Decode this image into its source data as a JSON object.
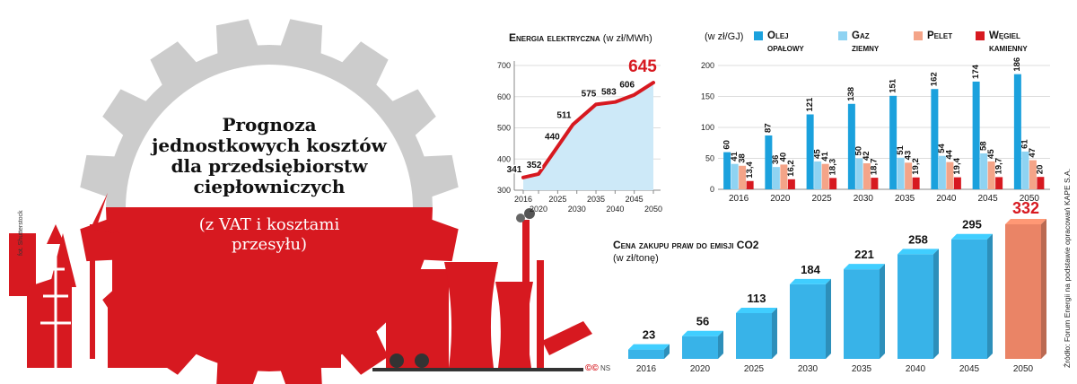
{
  "infographic": {
    "title_lines": [
      "Prognoza",
      "jednostkowych kosztów",
      "dla przedsiębiorstw",
      "ciepłowniczych"
    ],
    "subtitle_lines": [
      "(z VAT i kosztami",
      "przesyłu)"
    ],
    "photo_credit": "fot. Shutterstock",
    "source": "Źródło: Forum Energii na podstawie opracowań KAPE S.A.",
    "badge_text": "NS",
    "colors": {
      "red": "#d71920",
      "grey": "#cccccc"
    }
  },
  "chart_data": [
    {
      "type": "line",
      "title": "Energia elektryczna",
      "unit": "(w zł/MWh)",
      "x": [
        2016,
        2020,
        2025,
        2030,
        2035,
        2040,
        2045,
        2050
      ],
      "x_ticks_top": [
        "2016",
        "2025",
        "2035",
        "2045"
      ],
      "x_ticks_bottom": [
        "2020",
        "2030",
        "2040",
        "2050"
      ],
      "points_x": [
        2016,
        2020,
        2025,
        2029,
        2035,
        2040,
        2045,
        2050
      ],
      "values": [
        341,
        352,
        440,
        511,
        575,
        583,
        606,
        645
      ],
      "value_labels": [
        "341",
        "352",
        "440",
        "511",
        "575",
        "583",
        "606",
        "645"
      ],
      "ylim": [
        300,
        700
      ],
      "y_ticks": [
        "300",
        "400",
        "500",
        "600",
        "700"
      ],
      "line_color": "#d71920",
      "area_color": "#cde9f8",
      "grid": true
    },
    {
      "type": "bar",
      "unit": "(w zł/GJ)",
      "categories": [
        "2016",
        "2020",
        "2025",
        "2030",
        "2035",
        "2040",
        "2045",
        "2050"
      ],
      "series": [
        {
          "name": "Olej opałowy",
          "name_lines": [
            "Olej",
            "opałowy"
          ],
          "color": "#1ba1dd",
          "values": [
            60,
            87,
            121,
            138,
            151,
            162,
            174,
            186
          ],
          "labels": [
            "60",
            "87",
            "121",
            "138",
            "151",
            "162",
            "174",
            "186"
          ]
        },
        {
          "name": "Gaz ziemny",
          "name_lines": [
            "Gaz",
            "ziemny"
          ],
          "color": "#8fd3f2",
          "values": [
            41,
            36,
            45,
            50,
            51,
            54,
            58,
            61
          ],
          "labels": [
            "41",
            "36",
            "45",
            "50",
            "51",
            "54",
            "58",
            "61"
          ]
        },
        {
          "name": "Pelet",
          "name_lines": [
            "Pelet"
          ],
          "color": "#f4a488",
          "values": [
            38,
            40,
            41,
            42,
            43,
            44,
            45,
            47
          ],
          "labels": [
            "38",
            "40",
            "41",
            "42",
            "43",
            "44",
            "45",
            "47"
          ]
        },
        {
          "name": "Węgiel kamienny",
          "name_lines": [
            "Węgiel",
            "kamienny"
          ],
          "color": "#d71920",
          "values": [
            13.4,
            16.2,
            18.3,
            18.7,
            19.2,
            19.4,
            19.7,
            20
          ],
          "labels": [
            "13,4",
            "16,2",
            "18,3",
            "18,7",
            "19,2",
            "19,4",
            "19,7",
            "20"
          ]
        }
      ],
      "ylim": [
        0,
        200
      ],
      "y_ticks": [
        "0",
        "50",
        "100",
        "150",
        "200"
      ],
      "grid": true,
      "legend": "top"
    },
    {
      "type": "bar",
      "title": "Cena zakupu praw do emisji CO2",
      "unit": "(w zł/tonę)",
      "categories": [
        "2016",
        "2020",
        "2025",
        "2030",
        "2035",
        "2040",
        "2045",
        "2050"
      ],
      "values": [
        23,
        56,
        113,
        184,
        221,
        258,
        295,
        332
      ],
      "labels": [
        "23",
        "56",
        "113",
        "184",
        "221",
        "258",
        "295",
        "332"
      ],
      "color": "#38b3e8",
      "highlight_color": "#ea8466",
      "highlight_index": 7,
      "ylim": [
        0,
        332
      ]
    }
  ]
}
